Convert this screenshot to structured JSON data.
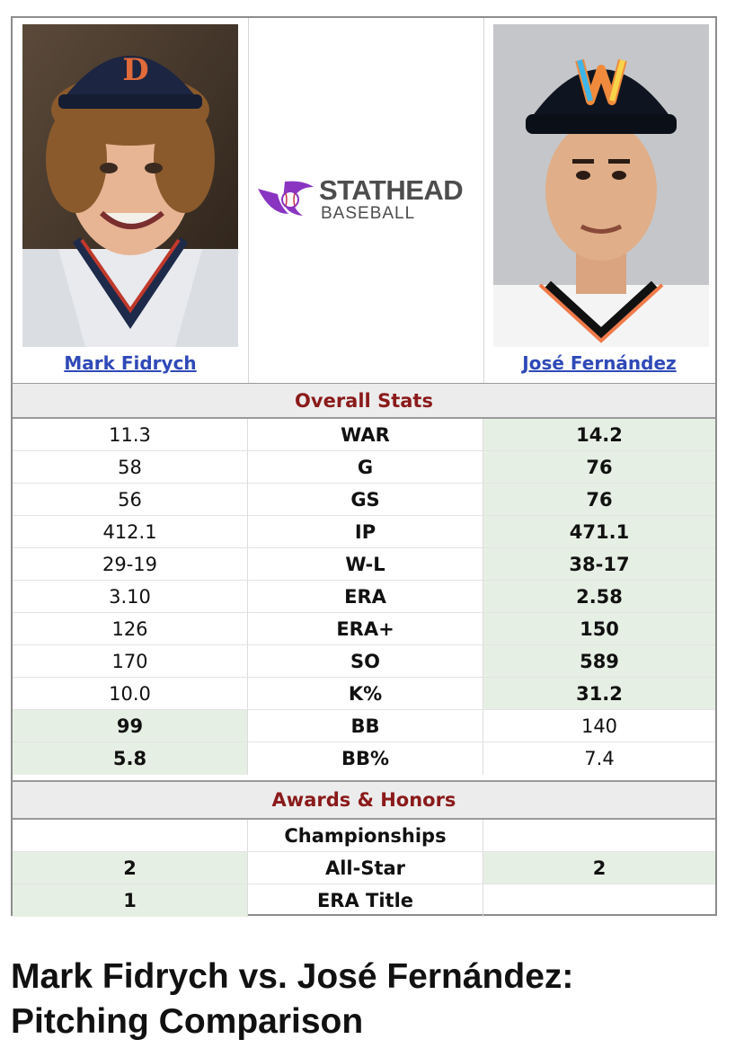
{
  "players": {
    "left": {
      "name": "Mark Fidrych"
    },
    "right": {
      "name": "José Fernández"
    }
  },
  "logo": {
    "title": "STATHEAD",
    "subtitle": "BASEBALL"
  },
  "sections": {
    "overall": "Overall Stats",
    "awards": "Awards & Honors"
  },
  "overall_stats": [
    {
      "stat": "WAR",
      "left": "11.3",
      "right": "14.2",
      "leader": "right"
    },
    {
      "stat": "G",
      "left": "58",
      "right": "76",
      "leader": "right"
    },
    {
      "stat": "GS",
      "left": "56",
      "right": "76",
      "leader": "right"
    },
    {
      "stat": "IP",
      "left": "412.1",
      "right": "471.1",
      "leader": "right"
    },
    {
      "stat": "W-L",
      "left": "29-19",
      "right": "38-17",
      "leader": "right"
    },
    {
      "stat": "ERA",
      "left": "3.10",
      "right": "2.58",
      "leader": "right"
    },
    {
      "stat": "ERA+",
      "left": "126",
      "right": "150",
      "leader": "right"
    },
    {
      "stat": "SO",
      "left": "170",
      "right": "589",
      "leader": "right"
    },
    {
      "stat": "K%",
      "left": "10.0",
      "right": "31.2",
      "leader": "right"
    },
    {
      "stat": "BB",
      "left": "99",
      "right": "140",
      "leader": "left"
    },
    {
      "stat": "BB%",
      "left": "5.8",
      "right": "7.4",
      "leader": "left"
    }
  ],
  "awards": [
    {
      "stat": "Championships",
      "left": "",
      "right": "",
      "leader": "none"
    },
    {
      "stat": "All-Star",
      "left": "2",
      "right": "2",
      "leader": "both"
    },
    {
      "stat": "ERA Title",
      "left": "1",
      "right": "",
      "leader": "left"
    }
  ],
  "caption": {
    "line1": "Mark Fidrych vs. José Fernández:",
    "line2": "Pitching Comparison"
  },
  "colors": {
    "leader_bg": "#e6efe3",
    "section_text": "#8b1a1a",
    "link": "#2f49b8",
    "logo_purple": "#8a34c2"
  }
}
